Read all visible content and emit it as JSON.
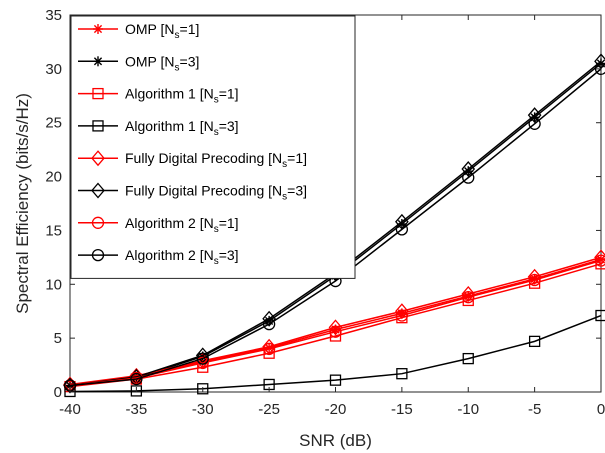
{
  "chart_data": {
    "type": "line",
    "title": "",
    "xlabel": "SNR (dB)",
    "ylabel": "Spectral Efficiency (bits/s/Hz)",
    "xlim": [
      -40,
      0
    ],
    "ylim": [
      0,
      35
    ],
    "xticks": [
      -40,
      -35,
      -30,
      -25,
      -20,
      -15,
      -10,
      -5,
      0
    ],
    "yticks": [
      0,
      5,
      10,
      15,
      20,
      25,
      30,
      35
    ],
    "grid": false,
    "legend_position": "top-left",
    "x": [
      -40,
      -35,
      -30,
      -25,
      -20,
      -15,
      -10,
      -5,
      0
    ],
    "series": [
      {
        "name": "OMP [N_s=1]",
        "legend": {
          "main": "OMP [N",
          "sub": "s",
          "tail": "=1]"
        },
        "color": "#ff0000",
        "marker": "asterisk",
        "values": [
          0.6,
          1.4,
          2.8,
          4.1,
          5.8,
          7.3,
          8.9,
          10.5,
          12.3
        ]
      },
      {
        "name": "OMP [N_s=3]",
        "legend": {
          "main": "OMP [N",
          "sub": "s",
          "tail": "=3]"
        },
        "color": "#000000",
        "marker": "asterisk",
        "values": [
          0.6,
          1.3,
          3.3,
          6.6,
          10.8,
          15.6,
          20.5,
          25.5,
          30.5
        ]
      },
      {
        "name": "Algorithm 1 [N_s=1]",
        "legend": {
          "main": "Algorithm 1 [N",
          "sub": "s",
          "tail": "=1]"
        },
        "color": "#ff0000",
        "marker": "square",
        "values": [
          0.5,
          1.2,
          2.3,
          3.6,
          5.2,
          6.9,
          8.5,
          10.1,
          11.9
        ]
      },
      {
        "name": "Algorithm 1 [N_s=3]",
        "legend": {
          "main": "Algorithm 1 [N",
          "sub": "s",
          "tail": "=3]"
        },
        "color": "#000000",
        "marker": "square",
        "values": [
          0.05,
          0.1,
          0.3,
          0.7,
          1.1,
          1.7,
          3.1,
          4.7,
          7.1
        ]
      },
      {
        "name": "Fully Digital Precoding [N_s=1]",
        "legend": {
          "main": "Fully Digital Precoding [N",
          "sub": "s",
          "tail": "=1]"
        },
        "color": "#ff0000",
        "marker": "diamond",
        "values": [
          0.7,
          1.5,
          2.9,
          4.2,
          6.0,
          7.5,
          9.1,
          10.7,
          12.5
        ]
      },
      {
        "name": "Fully Digital Precoding [N_s=3]",
        "legend": {
          "main": "Fully Digital Precoding [N",
          "sub": "s",
          "tail": "=3]"
        },
        "color": "#000000",
        "marker": "diamond",
        "values": [
          0.6,
          1.4,
          3.4,
          6.8,
          11.0,
          15.8,
          20.7,
          25.7,
          30.7
        ]
      },
      {
        "name": "Algorithm 2 [N_s=1]",
        "legend": {
          "main": "Algorithm 2 [N",
          "sub": "s",
          "tail": "=1]"
        },
        "color": "#ff0000",
        "marker": "circle",
        "values": [
          0.6,
          1.3,
          2.7,
          4.0,
          5.6,
          7.1,
          8.8,
          10.4,
          12.2
        ]
      },
      {
        "name": "Algorithm 2 [N_s=3]",
        "legend": {
          "main": "Algorithm 2 [N",
          "sub": "s",
          "tail": "=3]"
        },
        "color": "#000000",
        "marker": "circle",
        "values": [
          0.6,
          1.2,
          3.1,
          6.3,
          10.3,
          15.1,
          19.9,
          24.9,
          30.0
        ]
      }
    ]
  }
}
